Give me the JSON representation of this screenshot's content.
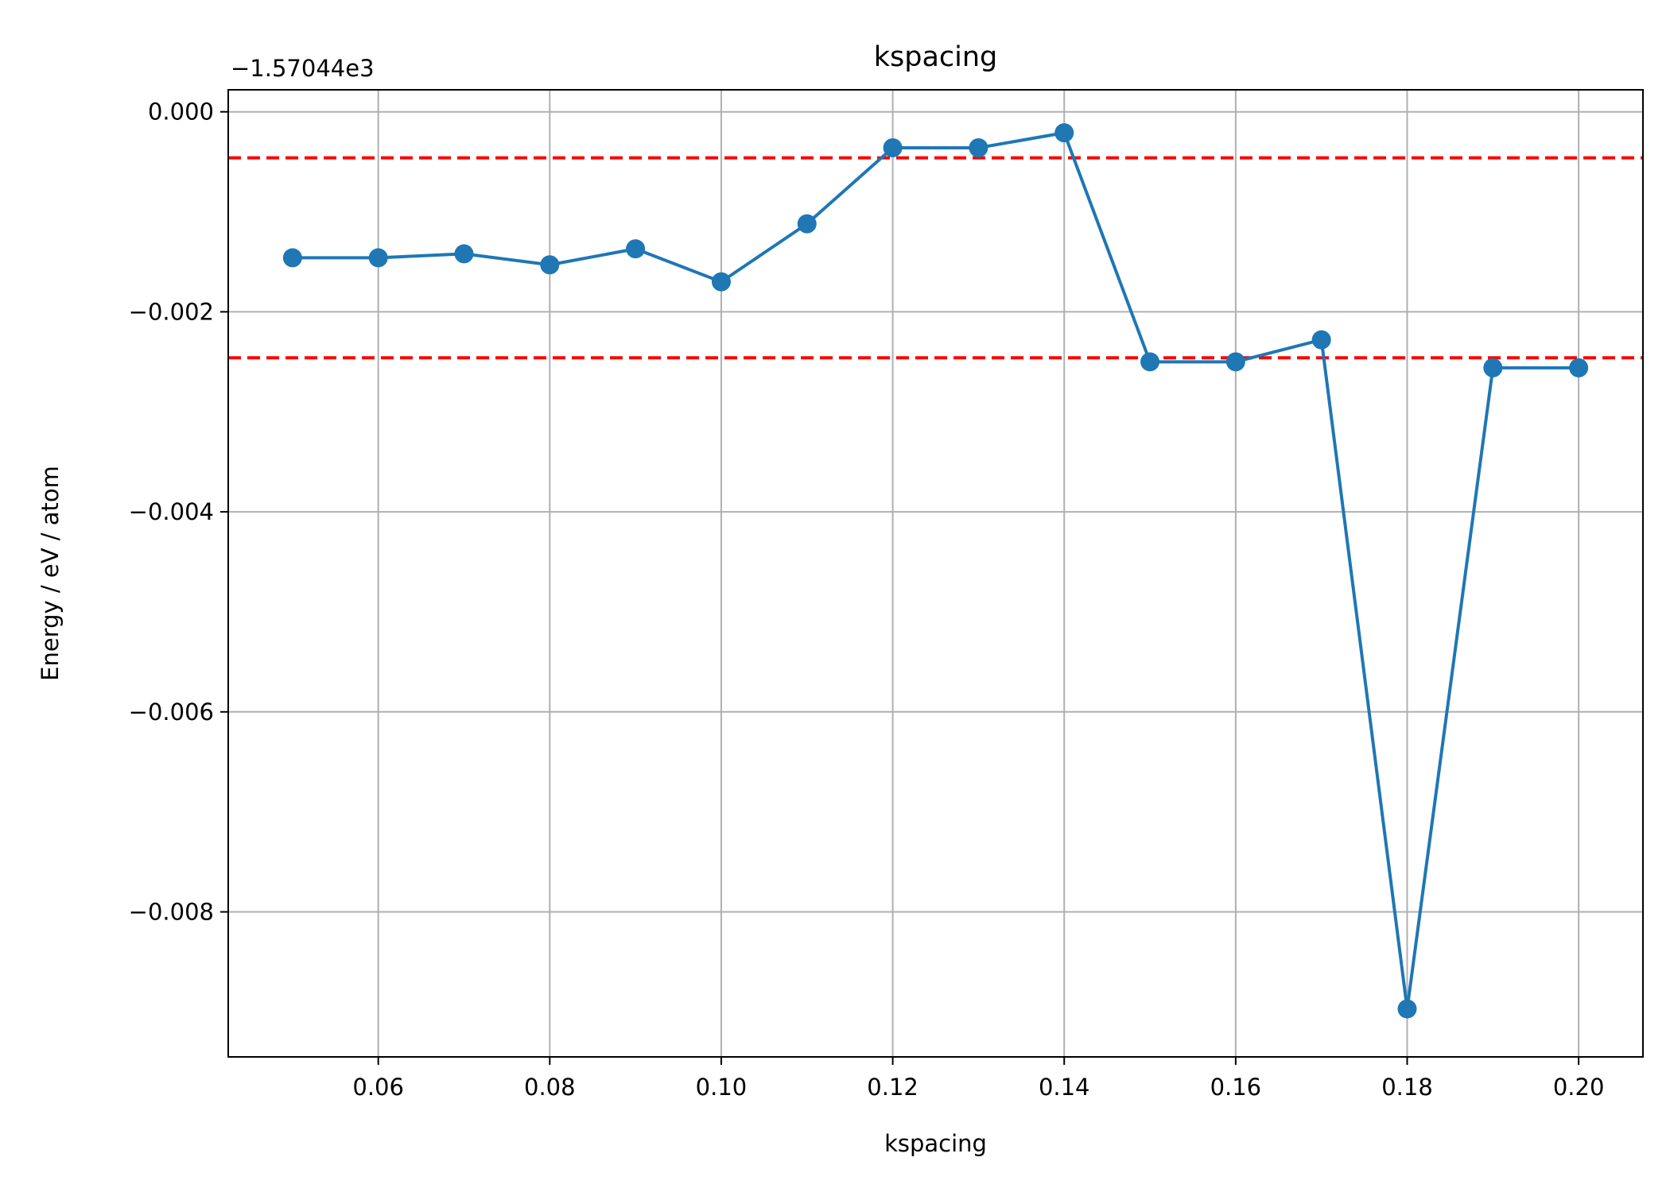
{
  "chart_data": {
    "type": "line",
    "title": "kspacing",
    "xlabel": "kspacing",
    "ylabel": "Energy / eV / atom",
    "y_offset_label": "−1.57044e3",
    "y_offset": -1570.44,
    "xlim": [
      0.0425,
      0.2075
    ],
    "ylim": [
      -0.00945,
      0.00022
    ],
    "grid": true,
    "x_ticks": [
      0.06,
      0.08,
      0.1,
      0.12,
      0.14,
      0.16,
      0.18,
      0.2
    ],
    "x_tick_labels": [
      "0.06",
      "0.08",
      "0.10",
      "0.12",
      "0.14",
      "0.16",
      "0.18",
      "0.20"
    ],
    "y_ticks": [
      0.0,
      -0.002,
      -0.004,
      -0.006,
      -0.008
    ],
    "y_tick_labels": [
      "0.000",
      "−0.002",
      "−0.004",
      "−0.006",
      "−0.008"
    ],
    "series": [
      {
        "color": "#1f77b4",
        "marker": "circle",
        "x": [
          0.05,
          0.06,
          0.07,
          0.08,
          0.09,
          0.1,
          0.11,
          0.12,
          0.13,
          0.14,
          0.15,
          0.16,
          0.17,
          0.18,
          0.19,
          0.2
        ],
        "y": [
          -0.00146,
          -0.00146,
          -0.00142,
          -0.00153,
          -0.00137,
          -0.0017,
          -0.00112,
          -0.00036,
          -0.00036,
          -0.00021,
          -0.0025,
          -0.0025,
          -0.00228,
          -0.00897,
          -0.00256,
          -0.00256
        ]
      }
    ],
    "reference_lines": [
      {
        "y": -0.00046,
        "color": "#ff0000",
        "style": "dashed"
      },
      {
        "y": -0.00246,
        "color": "#ff0000",
        "style": "dashed"
      }
    ]
  }
}
